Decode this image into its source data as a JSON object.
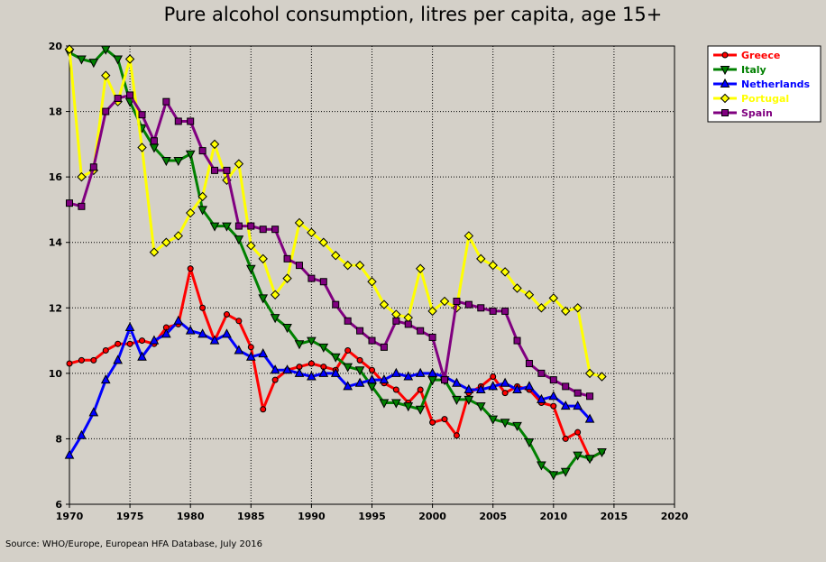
{
  "title": "Pure alcohol consumption, litres per capita, age 15+",
  "source": "Source: WHO/Europe, European HFA Database, July 2016",
  "chart_data": {
    "type": "line",
    "title": "Pure alcohol consumption, litres per capita, age 15+",
    "xlabel": "",
    "ylabel": "",
    "xlim": [
      1970,
      2020
    ],
    "ylim": [
      6,
      20
    ],
    "x_ticks": [
      "1970",
      "1975",
      "1980",
      "1985",
      "1990",
      "1995",
      "2000",
      "2005",
      "2010",
      "2015",
      "2020"
    ],
    "y_ticks": [
      "6",
      "8",
      "10",
      "12",
      "14",
      "16",
      "18",
      "20"
    ],
    "grid": true,
    "legend_position": "top-right",
    "series": [
      {
        "name": "Greece",
        "color": "#ff0000",
        "marker": "circle",
        "x": [
          1970,
          1971,
          1972,
          1973,
          1974,
          1975,
          1976,
          1977,
          1978,
          1979,
          1980,
          1981,
          1982,
          1983,
          1984,
          1985,
          1986,
          1987,
          1988,
          1989,
          1990,
          1991,
          1992,
          1993,
          1994,
          1995,
          1996,
          1997,
          1998,
          1999,
          2000,
          2001,
          2002,
          2003,
          2004,
          2005,
          2006,
          2007,
          2008,
          2009,
          2010,
          2011,
          2012,
          2013,
          2014
        ],
        "values": [
          10.3,
          10.4,
          10.4,
          10.7,
          10.9,
          10.9,
          11.0,
          10.9,
          11.4,
          11.5,
          13.2,
          12.0,
          11.0,
          11.8,
          11.6,
          10.8,
          8.9,
          9.8,
          10.1,
          10.2,
          10.3,
          10.2,
          10.1,
          10.7,
          10.4,
          10.1,
          9.7,
          9.5,
          9.1,
          9.5,
          8.5,
          8.6,
          8.1,
          9.4,
          9.6,
          9.9,
          9.4,
          9.6,
          9.5,
          9.1,
          9.0,
          8.0,
          8.2,
          7.4,
          7.6
        ]
      },
      {
        "name": "Italy",
        "color": "#008000",
        "marker": "triangle-down",
        "x": [
          1970,
          1971,
          1972,
          1973,
          1974,
          1975,
          1976,
          1977,
          1978,
          1979,
          1980,
          1981,
          1982,
          1983,
          1984,
          1985,
          1986,
          1987,
          1988,
          1989,
          1990,
          1991,
          1992,
          1993,
          1994,
          1995,
          1996,
          1997,
          1998,
          1999,
          2000,
          2001,
          2002,
          2003,
          2004,
          2005,
          2006,
          2007,
          2008,
          2009,
          2010,
          2011,
          2012,
          2013,
          2014
        ],
        "values": [
          19.8,
          19.6,
          19.5,
          19.9,
          19.6,
          18.3,
          17.5,
          16.9,
          16.5,
          16.5,
          16.7,
          15.0,
          14.5,
          14.5,
          14.1,
          13.2,
          12.3,
          11.7,
          11.4,
          10.9,
          11.0,
          10.8,
          10.5,
          10.2,
          10.1,
          9.6,
          9.1,
          9.1,
          9.0,
          8.9,
          9.8,
          9.8,
          9.2,
          9.2,
          9.0,
          8.6,
          8.5,
          8.4,
          7.9,
          7.2,
          6.9,
          7.0,
          7.5,
          7.4,
          7.6
        ]
      },
      {
        "name": "Netherlands",
        "color": "#0000ff",
        "marker": "triangle-up",
        "x": [
          1970,
          1971,
          1972,
          1973,
          1974,
          1975,
          1976,
          1977,
          1978,
          1979,
          1980,
          1981,
          1982,
          1983,
          1984,
          1985,
          1986,
          1987,
          1988,
          1989,
          1990,
          1991,
          1992,
          1993,
          1994,
          1995,
          1996,
          1997,
          1998,
          1999,
          2000,
          2001,
          2002,
          2003,
          2004,
          2005,
          2006,
          2007,
          2008,
          2009,
          2010,
          2011,
          2012,
          2013
        ],
        "values": [
          7.5,
          8.1,
          8.8,
          9.8,
          10.4,
          11.4,
          10.5,
          11.0,
          11.2,
          11.6,
          11.3,
          11.2,
          11.0,
          11.2,
          10.7,
          10.5,
          10.6,
          10.1,
          10.1,
          10.0,
          9.9,
          10.0,
          10.0,
          9.6,
          9.7,
          9.8,
          9.8,
          10.0,
          9.9,
          10.0,
          10.0,
          9.9,
          9.7,
          9.5,
          9.5,
          9.6,
          9.7,
          9.5,
          9.6,
          9.2,
          9.3,
          9.0,
          9.0,
          8.6
        ]
      },
      {
        "name": "Portugal",
        "color": "#ffff00",
        "marker": "diamond",
        "x": [
          1970,
          1971,
          1972,
          1973,
          1974,
          1975,
          1976,
          1977,
          1978,
          1979,
          1980,
          1981,
          1982,
          1983,
          1984,
          1985,
          1986,
          1987,
          1988,
          1989,
          1990,
          1991,
          1992,
          1993,
          1994,
          1995,
          1996,
          1997,
          1998,
          1999,
          2000,
          2001,
          2002,
          2003,
          2004,
          2005,
          2006,
          2007,
          2008,
          2009,
          2010,
          2011,
          2012,
          2013,
          2014
        ],
        "values": [
          19.9,
          16.0,
          16.2,
          19.1,
          18.3,
          19.6,
          16.9,
          13.7,
          14.0,
          14.2,
          14.9,
          15.4,
          17.0,
          15.9,
          16.4,
          13.9,
          13.5,
          12.4,
          12.9,
          14.6,
          14.3,
          14.0,
          13.6,
          13.3,
          13.3,
          12.8,
          12.1,
          11.8,
          11.7,
          13.2,
          11.9,
          12.2,
          12.0,
          14.2,
          13.5,
          13.3,
          13.1,
          12.6,
          12.4,
          12.0,
          12.3,
          11.9,
          12.0,
          10.0,
          9.9
        ]
      },
      {
        "name": "Spain",
        "color": "#800080",
        "marker": "square",
        "x": [
          1970,
          1971,
          1972,
          1973,
          1974,
          1975,
          1976,
          1977,
          1978,
          1979,
          1980,
          1981,
          1982,
          1983,
          1984,
          1985,
          1986,
          1987,
          1988,
          1989,
          1990,
          1991,
          1992,
          1993,
          1994,
          1995,
          1996,
          1997,
          1998,
          1999,
          2000,
          2001,
          2002,
          2003,
          2004,
          2005,
          2006,
          2007,
          2008,
          2009,
          2010,
          2011,
          2012,
          2013
        ],
        "values": [
          15.2,
          15.1,
          16.3,
          18.0,
          18.4,
          18.5,
          17.9,
          17.1,
          18.3,
          17.7,
          17.7,
          16.8,
          16.2,
          16.2,
          14.5,
          14.5,
          14.4,
          14.4,
          13.5,
          13.3,
          12.9,
          12.8,
          12.1,
          11.6,
          11.3,
          11.0,
          10.8,
          11.6,
          11.5,
          11.3,
          11.1,
          9.8,
          12.2,
          12.1,
          12.0,
          11.9,
          11.9,
          11.0,
          10.3,
          10.0,
          9.8,
          9.6,
          9.4,
          9.3
        ]
      }
    ]
  }
}
